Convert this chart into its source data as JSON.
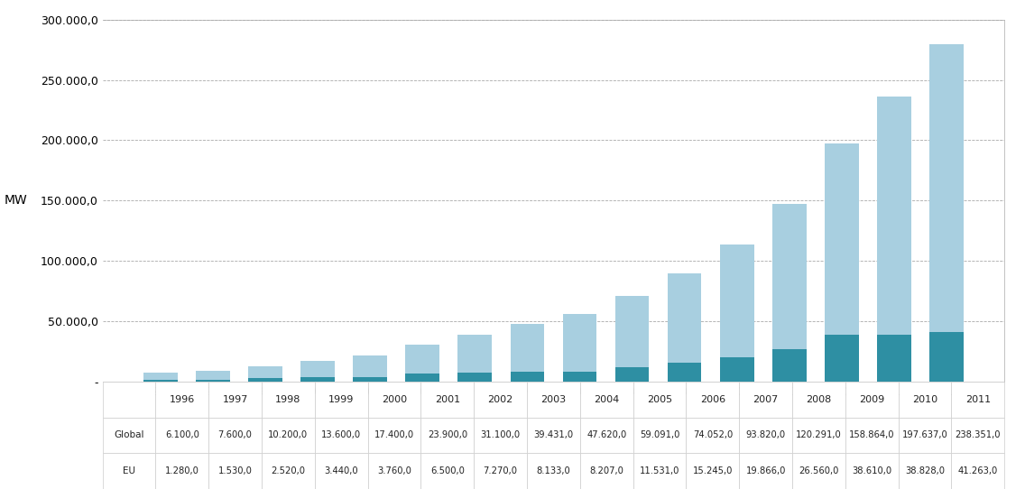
{
  "years": [
    1996,
    1997,
    1998,
    1999,
    2000,
    2001,
    2002,
    2003,
    2004,
    2005,
    2006,
    2007,
    2008,
    2009,
    2010,
    2011
  ],
  "global_values": [
    6100.0,
    7600.0,
    10200.0,
    13600.0,
    17400.0,
    23900.0,
    31100.0,
    39431.0,
    47620.0,
    59091.0,
    74052.0,
    93820.0,
    120291.0,
    158864.0,
    197637.0,
    238351.0
  ],
  "eu_values": [
    1280.0,
    1530.0,
    2520.0,
    3440.0,
    3760.0,
    6500.0,
    7270.0,
    8133.0,
    8207.0,
    11531.0,
    15245.0,
    19866.0,
    26560.0,
    38610.0,
    38828.0,
    41263.0
  ],
  "global_color": "#a8cfe0",
  "eu_color": "#2e8fa3",
  "ylabel": "MW",
  "ylim": [
    0,
    300000
  ],
  "yticks": [
    0,
    50000,
    100000,
    150000,
    200000,
    250000,
    300000
  ],
  "background_color": "#ffffff",
  "plot_bg_color": "#ffffff",
  "legend_global_label": "Global",
  "legend_eu_label": "EU",
  "bar_width": 0.65,
  "grid_color": "#aaaaaa",
  "tick_color": "#444444",
  "spine_color": "#aaaaaa"
}
